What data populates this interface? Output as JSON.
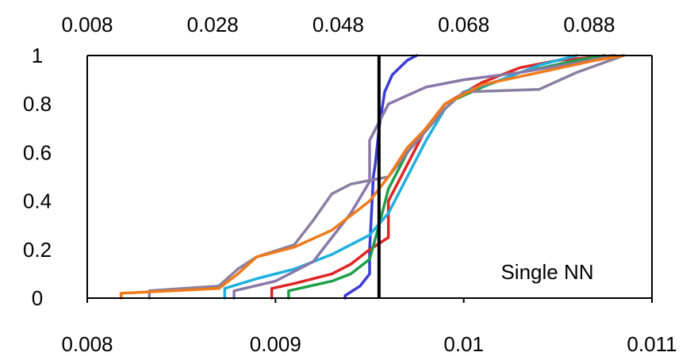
{
  "chart_data": {
    "type": "line",
    "title": "",
    "xlabel": "",
    "ylabel": "",
    "annotation": "Single NN",
    "grid": false,
    "legend": "none",
    "x_bottom": {
      "range": [
        0.008,
        0.011
      ],
      "ticks": [
        0.008,
        0.009,
        0.01,
        0.011
      ],
      "tick_labels": [
        "0.008",
        "0.009",
        "0.01",
        "0.011"
      ]
    },
    "x_top": {
      "range": [
        0.008,
        0.098
      ],
      "ticks": [
        0.008,
        0.028,
        0.048,
        0.068,
        0.088
      ],
      "tick_labels": [
        "0.008",
        "0.028",
        "0.048",
        "0.068",
        "0.088"
      ]
    },
    "y": {
      "range": [
        0,
        1
      ],
      "ticks": [
        0,
        0.2,
        0.4,
        0.6,
        0.8,
        1
      ],
      "tick_labels": [
        "0",
        "0.2",
        "0.4",
        "0.6",
        "0.8",
        "1"
      ]
    },
    "reference_line": {
      "axis": "bottom",
      "x": 0.00955,
      "color": "#000000"
    },
    "series": [
      {
        "color": "#3b3bd9",
        "points": [
          [
            0.00937,
            0
          ],
          [
            0.00937,
            0.01
          ],
          [
            0.00945,
            0.05
          ],
          [
            0.0095,
            0.1
          ],
          [
            0.0095,
            0.2
          ],
          [
            0.00951,
            0.35
          ],
          [
            0.00952,
            0.5
          ],
          [
            0.00953,
            0.55
          ],
          [
            0.00955,
            0.7
          ],
          [
            0.00958,
            0.85
          ],
          [
            0.00962,
            0.92
          ],
          [
            0.0097,
            0.98
          ],
          [
            0.00975,
            1
          ]
        ]
      },
      {
        "color": "#e02424",
        "points": [
          [
            0.00898,
            0
          ],
          [
            0.00898,
            0.04
          ],
          [
            0.0091,
            0.06
          ],
          [
            0.0093,
            0.1
          ],
          [
            0.0094,
            0.14
          ],
          [
            0.0095,
            0.2
          ],
          [
            0.0096,
            0.25
          ],
          [
            0.0096,
            0.4
          ],
          [
            0.0097,
            0.55
          ],
          [
            0.0098,
            0.7
          ],
          [
            0.0099,
            0.8
          ],
          [
            0.0101,
            0.89
          ],
          [
            0.0103,
            0.95
          ],
          [
            0.0105,
            0.98
          ],
          [
            0.0108,
            1
          ]
        ]
      },
      {
        "color": "#1e9e4a",
        "points": [
          [
            0.00907,
            0
          ],
          [
            0.00907,
            0.03
          ],
          [
            0.0093,
            0.07
          ],
          [
            0.0094,
            0.1
          ],
          [
            0.0095,
            0.16
          ],
          [
            0.00955,
            0.3
          ],
          [
            0.0096,
            0.45
          ],
          [
            0.0097,
            0.6
          ],
          [
            0.0098,
            0.7
          ],
          [
            0.0099,
            0.8
          ],
          [
            0.0101,
            0.87
          ],
          [
            0.0103,
            0.93
          ],
          [
            0.0106,
            0.98
          ],
          [
            0.01075,
            1
          ]
        ]
      },
      {
        "color": "#1fb0e0",
        "points": [
          [
            0.00873,
            0
          ],
          [
            0.00873,
            0.04
          ],
          [
            0.0089,
            0.08
          ],
          [
            0.0091,
            0.12
          ],
          [
            0.0093,
            0.18
          ],
          [
            0.0095,
            0.26
          ],
          [
            0.0096,
            0.35
          ],
          [
            0.0097,
            0.5
          ],
          [
            0.0098,
            0.65
          ],
          [
            0.0099,
            0.78
          ],
          [
            0.01,
            0.85
          ],
          [
            0.0102,
            0.9
          ],
          [
            0.0104,
            0.96
          ],
          [
            0.0106,
            1
          ]
        ]
      },
      {
        "color": "#8878a8",
        "points": [
          [
            0.00878,
            0
          ],
          [
            0.00878,
            0.03
          ],
          [
            0.009,
            0.07
          ],
          [
            0.0092,
            0.15
          ],
          [
            0.0093,
            0.25
          ],
          [
            0.0094,
            0.35
          ],
          [
            0.0095,
            0.48
          ],
          [
            0.0095,
            0.65
          ],
          [
            0.0096,
            0.8
          ],
          [
            0.0098,
            0.87
          ],
          [
            0.01,
            0.9
          ],
          [
            0.0103,
            0.93
          ],
          [
            0.0106,
            0.97
          ],
          [
            0.0108,
            1
          ]
        ]
      },
      {
        "color": "#8a7fa0",
        "points": [
          [
            0.00833,
            0
          ],
          [
            0.00833,
            0.03
          ],
          [
            0.0087,
            0.05
          ],
          [
            0.0088,
            0.12
          ],
          [
            0.0089,
            0.17
          ],
          [
            0.0091,
            0.22
          ],
          [
            0.0092,
            0.32
          ],
          [
            0.0093,
            0.43
          ],
          [
            0.0094,
            0.47
          ],
          [
            0.0096,
            0.5
          ],
          [
            0.0097,
            0.6
          ],
          [
            0.0099,
            0.78
          ],
          [
            0.01,
            0.85
          ],
          [
            0.0104,
            0.86
          ],
          [
            0.0106,
            0.93
          ],
          [
            0.01085,
            1
          ]
        ]
      },
      {
        "color": "#ef7a1a",
        "points": [
          [
            0.00818,
            0
          ],
          [
            0.00818,
            0.02
          ],
          [
            0.0087,
            0.04
          ],
          [
            0.0088,
            0.1
          ],
          [
            0.0089,
            0.17
          ],
          [
            0.0091,
            0.21
          ],
          [
            0.0093,
            0.28
          ],
          [
            0.0095,
            0.4
          ],
          [
            0.0096,
            0.5
          ],
          [
            0.0097,
            0.62
          ],
          [
            0.0098,
            0.7
          ],
          [
            0.0099,
            0.8
          ],
          [
            0.0101,
            0.88
          ],
          [
            0.0104,
            0.93
          ],
          [
            0.0107,
            0.98
          ],
          [
            0.01085,
            1
          ]
        ]
      }
    ]
  }
}
